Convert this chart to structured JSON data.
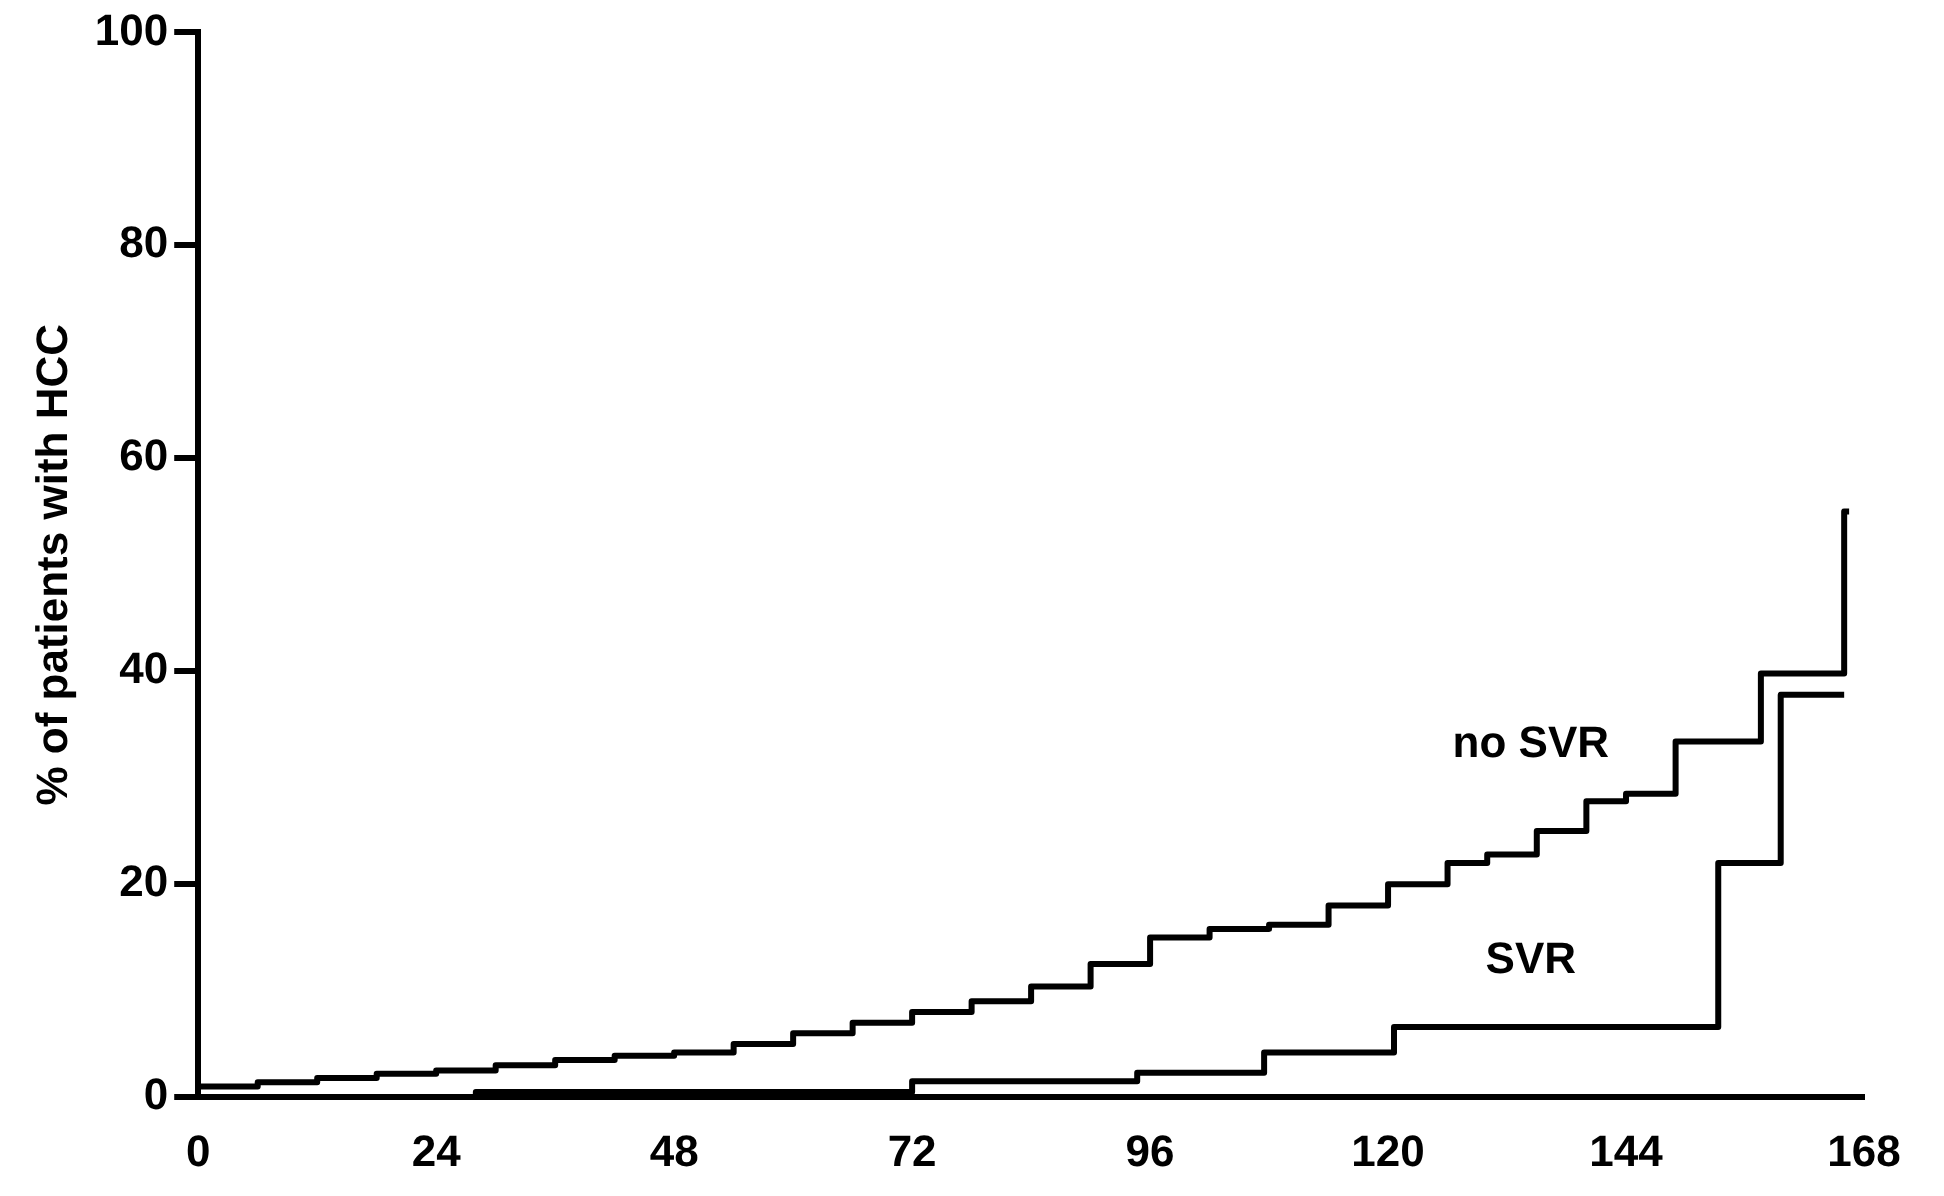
{
  "chart_data": {
    "type": "step",
    "ylabel": "% of patients with HCC",
    "xlim": [
      0,
      168
    ],
    "xticks": [
      0,
      24,
      48,
      72,
      96,
      120,
      144,
      168
    ],
    "ylim": [
      0,
      100
    ],
    "yticks": [
      0,
      20,
      40,
      60,
      80,
      100
    ],
    "grid": false,
    "legend": false,
    "marker": "none",
    "series": [
      {
        "name": "no SVR",
        "color": "#000000",
        "x": [
          0,
          6,
          12,
          18,
          24,
          30,
          36,
          42,
          48,
          54,
          60,
          66,
          72,
          78,
          84,
          90,
          96,
          102,
          108,
          114,
          120,
          126,
          130,
          135,
          140,
          144,
          149,
          157.6,
          166,
          166.5
        ],
        "values": [
          1,
          1.4,
          1.8,
          2.2,
          2.5,
          3,
          3.5,
          3.9,
          4.2,
          5,
          6,
          7,
          8,
          9,
          10.4,
          12.5,
          15,
          15.8,
          16.2,
          18,
          20,
          22,
          22.8,
          25,
          27.8,
          28.5,
          33.4,
          39.8,
          55,
          55
        ]
      },
      {
        "name": "SVR",
        "color": "#000000",
        "x": [
          0,
          28,
          72,
          94.7,
          107.5,
          120.6,
          153.3,
          159.6,
          166
        ],
        "values": [
          0,
          0.5,
          1.5,
          2.3,
          4.2,
          6.6,
          22,
          37.8,
          37.8
        ]
      }
    ]
  }
}
